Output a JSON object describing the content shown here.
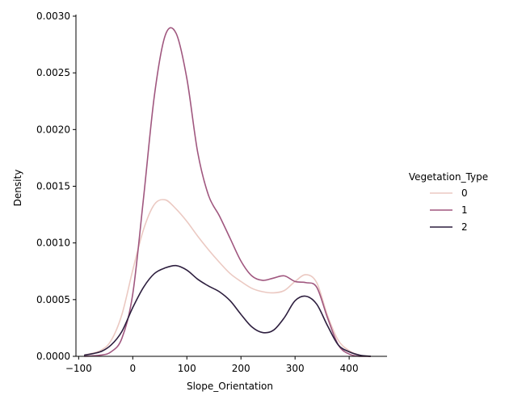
{
  "chart_data": {
    "type": "line",
    "title": "",
    "xlabel": "Slope_Orientation",
    "ylabel": "Density",
    "xlim": [
      -105,
      470
    ],
    "ylim": [
      0,
      0.003
    ],
    "xticks": [
      -100,
      0,
      100,
      200,
      300,
      400
    ],
    "xtick_labels": [
      "−100",
      "0",
      "100",
      "200",
      "300",
      "400"
    ],
    "yticks": [
      0,
      0.0005,
      0.001,
      0.0015,
      0.002,
      0.0025,
      0.003
    ],
    "ytick_labels": [
      "0.0000",
      "0.0005",
      "0.0010",
      "0.0015",
      "0.0020",
      "0.0025",
      "0.0030"
    ],
    "grid": false,
    "legend": {
      "title": "Vegetation_Type",
      "placement": "right"
    },
    "series": [
      {
        "name": "0",
        "color": "#ebc9c2",
        "x": [
          -90,
          -60,
          -40,
          -20,
          0,
          20,
          40,
          60,
          80,
          100,
          120,
          140,
          160,
          180,
          200,
          220,
          240,
          260,
          280,
          300,
          320,
          340,
          360,
          380,
          400,
          420,
          440
        ],
        "y": [
          1e-05,
          5e-05,
          0.00014,
          0.00037,
          0.00076,
          0.00112,
          0.00134,
          0.00138,
          0.0013,
          0.00119,
          0.00106,
          0.00094,
          0.00083,
          0.00073,
          0.00066,
          0.0006,
          0.00057,
          0.00056,
          0.00058,
          0.00066,
          0.00072,
          0.00065,
          0.00036,
          0.00014,
          5e-05,
          1e-05,
          0.0
        ]
      },
      {
        "name": "1",
        "color": "#a0577f",
        "x": [
          -90,
          -60,
          -40,
          -20,
          0,
          20,
          40,
          60,
          80,
          100,
          120,
          140,
          160,
          180,
          200,
          220,
          240,
          260,
          280,
          300,
          320,
          340,
          360,
          380,
          400,
          420,
          440
        ],
        "y": [
          0.0,
          1e-05,
          4e-05,
          0.00016,
          0.00055,
          0.0014,
          0.0023,
          0.00283,
          0.00285,
          0.00245,
          0.0018,
          0.00142,
          0.00124,
          0.00104,
          0.00084,
          0.00071,
          0.00067,
          0.00069,
          0.00071,
          0.00066,
          0.00065,
          0.00061,
          0.00034,
          0.0001,
          2e-05,
          0.0,
          0.0
        ]
      },
      {
        "name": "2",
        "color": "#2d1e3e",
        "x": [
          -90,
          -60,
          -40,
          -20,
          0,
          20,
          40,
          60,
          80,
          100,
          120,
          140,
          160,
          180,
          200,
          220,
          240,
          260,
          280,
          300,
          320,
          340,
          360,
          380,
          400,
          420,
          440
        ],
        "y": [
          1e-05,
          4e-05,
          0.0001,
          0.00022,
          0.00043,
          0.00061,
          0.00073,
          0.00078,
          0.0008,
          0.00076,
          0.00068,
          0.00062,
          0.00057,
          0.00049,
          0.00037,
          0.00026,
          0.00021,
          0.00023,
          0.00034,
          0.00049,
          0.00053,
          0.00046,
          0.00027,
          0.0001,
          4e-05,
          1e-05,
          0.0
        ]
      }
    ]
  }
}
